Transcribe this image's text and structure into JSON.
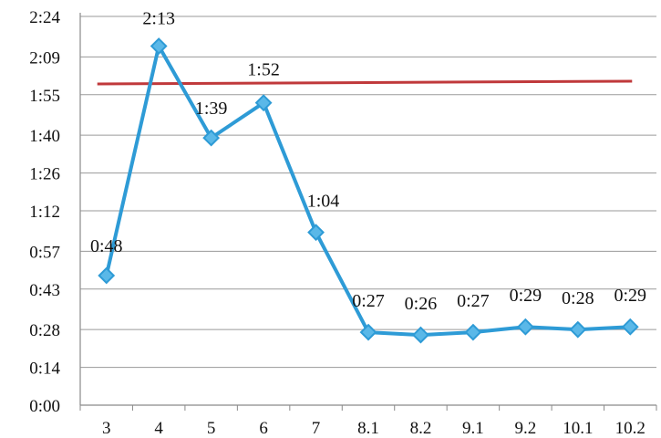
{
  "chart_data": {
    "type": "line",
    "title": "",
    "xlabel": "",
    "ylabel": "",
    "categories": [
      "3",
      "4",
      "5",
      "6",
      "7",
      "8.1",
      "8.2",
      "9.1",
      "9.2",
      "10.1",
      "10.2"
    ],
    "y_unit": "minutes:seconds",
    "yticks": [
      "0:00",
      "0:14",
      "0:28",
      "0:43",
      "0:57",
      "1:12",
      "1:26",
      "1:40",
      "1:55",
      "2:09",
      "2:24"
    ],
    "ylim": [
      "0:00",
      "2:24"
    ],
    "grid": true,
    "legend": "none",
    "series": [
      {
        "values": [
          48,
          133,
          99,
          112,
          64,
          27,
          26,
          27,
          29,
          28,
          29
        ],
        "data_labels": [
          "0:48",
          "2:13",
          "1:39",
          "1:52",
          "1:04",
          "0:27",
          "0:26",
          "0:27",
          "0:29",
          "0:28",
          "0:29"
        ],
        "color": "#2e9bd6",
        "marker": "diamond"
      }
    ],
    "reference_line": {
      "value_start": "1:59",
      "value_end": "2:00",
      "color": "#c0393b"
    }
  }
}
